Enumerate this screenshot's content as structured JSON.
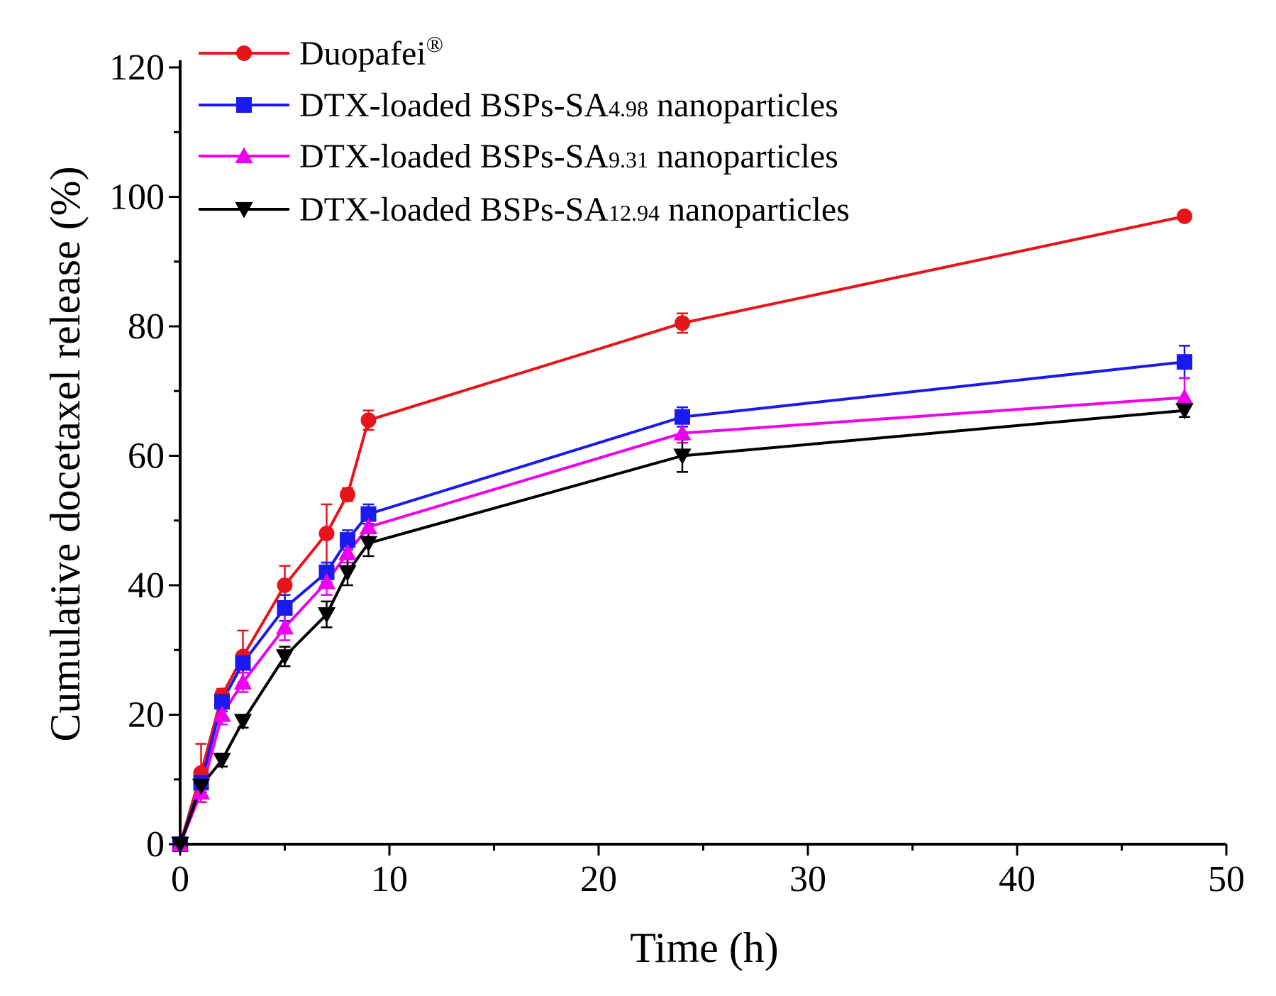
{
  "chart_data": {
    "type": "line",
    "title": "",
    "xlabel": "Time (h)",
    "ylabel": "Cumulative docetaxel release (%)",
    "xlim": [
      0,
      50
    ],
    "ylim": [
      0,
      120
    ],
    "xticks": [
      0,
      10,
      20,
      30,
      40,
      50
    ],
    "yticks": [
      0,
      20,
      40,
      60,
      80,
      100,
      120
    ],
    "x": [
      0,
      1,
      2,
      3,
      5,
      7,
      8,
      9,
      24,
      48
    ],
    "legend_position": "top-left",
    "series": [
      {
        "name": "Duopafei",
        "legend_suffix": "®",
        "marker": "circle",
        "color": "#e8141b",
        "values": [
          0,
          11,
          23,
          29,
          40,
          48,
          54,
          65.5,
          80.5,
          97
        ],
        "errors": [
          0,
          4.5,
          1,
          4,
          3,
          4.5,
          1,
          1.5,
          1.5,
          0
        ]
      },
      {
        "name": "DTX-loaded BSPs-SA",
        "legend_subscript": "4.98",
        "legend_tail": " nanoparticles",
        "marker": "square",
        "color": "#1a1aee",
        "values": [
          0,
          9.5,
          22,
          28,
          36.5,
          42,
          47,
          51,
          66,
          74.5
        ],
        "errors": [
          0,
          1.5,
          1.5,
          1.5,
          2,
          1.5,
          1.5,
          1.5,
          1.5,
          2.5
        ]
      },
      {
        "name": "DTX-loaded BSPs-SA",
        "legend_subscript": "9.31",
        "legend_tail": " nanoparticles",
        "marker": "triangle-up",
        "color": "#ee00ee",
        "values": [
          0,
          8,
          20,
          25,
          33.5,
          40.5,
          45,
          49,
          63.5,
          69
        ],
        "errors": [
          0,
          1.5,
          1.5,
          1.5,
          2,
          2,
          1.5,
          1.5,
          1.5,
          3
        ]
      },
      {
        "name": "DTX-loaded BSPs-SA",
        "legend_subscript": "12.94",
        "legend_tail": " nanoparticles",
        "marker": "triangle-down",
        "color": "#000000",
        "values": [
          0,
          9,
          13,
          19,
          29,
          35.5,
          42,
          46.5,
          60,
          67
        ],
        "errors": [
          0,
          1,
          1,
          1,
          1.5,
          2,
          2,
          2,
          2.5,
          1
        ]
      }
    ]
  }
}
